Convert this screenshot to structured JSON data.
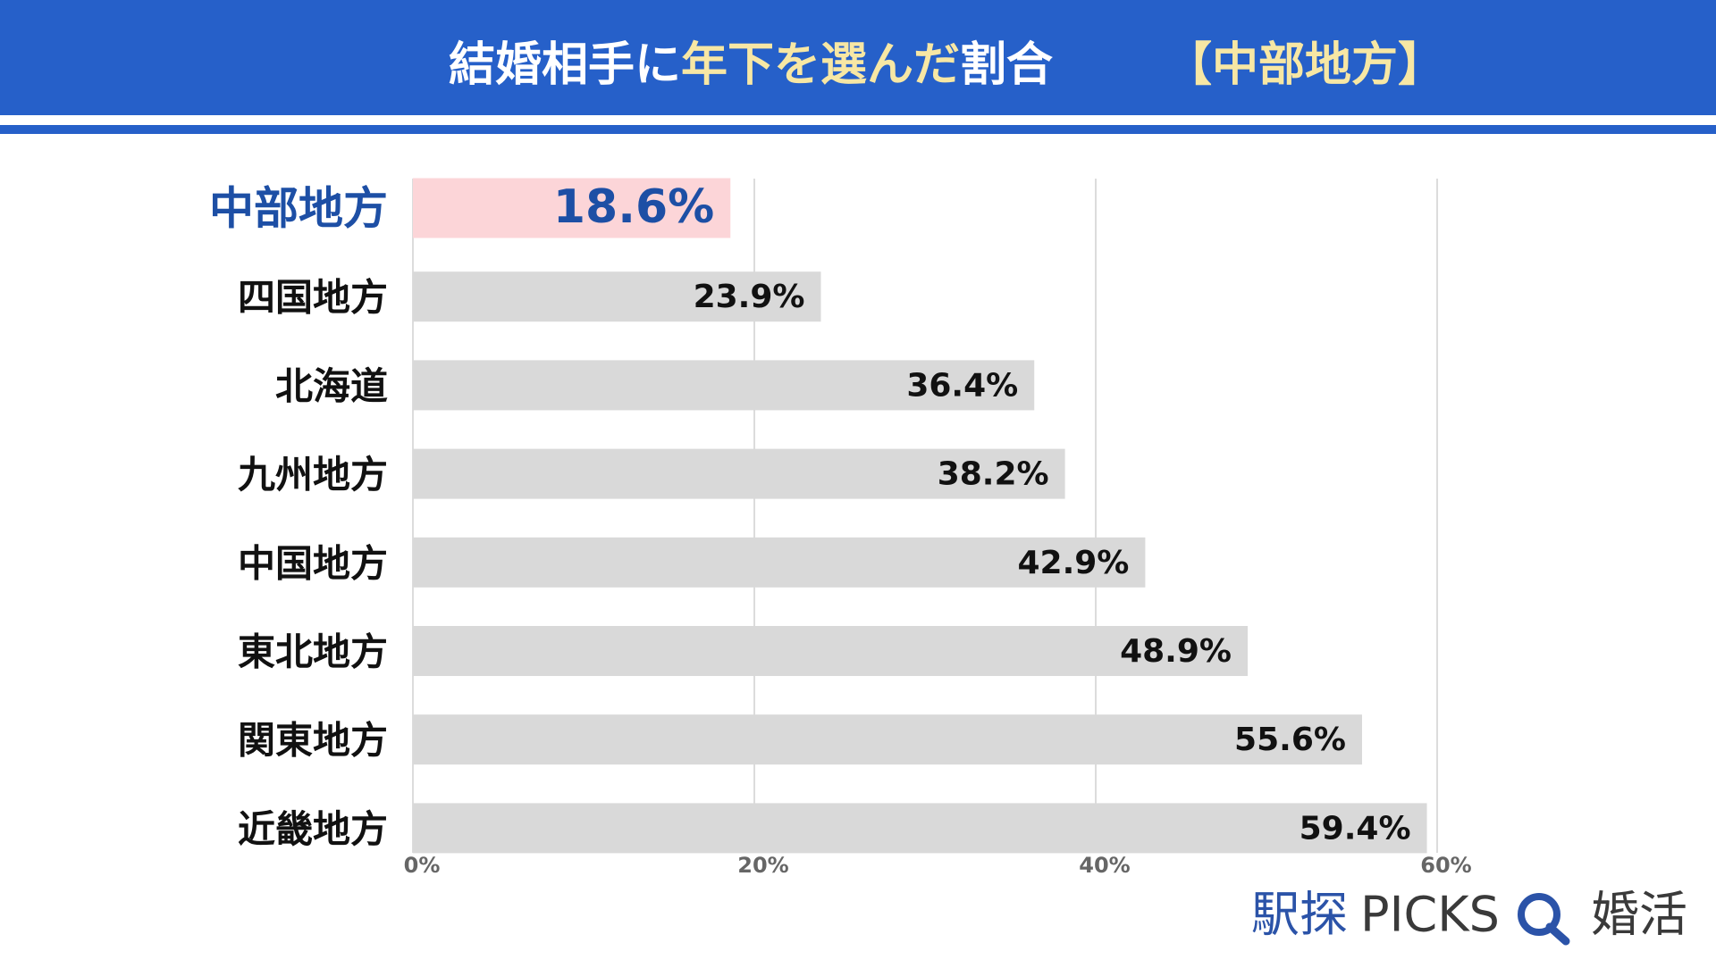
{
  "chart_data": {
    "type": "bar",
    "orientation": "horizontal",
    "title_segments": [
      {
        "text": "結婚相手に",
        "color": "#ffffff"
      },
      {
        "text": "年下を選んだ",
        "color": "#f7e7a4"
      },
      {
        "text": "割合",
        "color": "#ffffff"
      }
    ],
    "subtitle": "【中部地方】",
    "subtitle_color": "#f7e7a4",
    "categories": [
      "中部地方",
      "四国地方",
      "北海道",
      "九州地方",
      "中国地方",
      "東北地方",
      "関東地方",
      "近畿地方"
    ],
    "values": [
      18.6,
      23.9,
      36.4,
      38.2,
      42.9,
      48.9,
      55.6,
      59.4
    ],
    "value_labels": [
      "18.6%",
      "23.9%",
      "36.4%",
      "38.2%",
      "42.9%",
      "48.9%",
      "55.6%",
      "59.4%"
    ],
    "colors": [
      "#fcd5d8",
      "#d9d9d9",
      "#d9d9d9",
      "#d9d9d9",
      "#d9d9d9",
      "#d9d9d9",
      "#d9d9d9",
      "#d9d9d9"
    ],
    "label_colors": [
      "#1d4fa5",
      "#111111",
      "#111111",
      "#111111",
      "#111111",
      "#111111",
      "#111111",
      "#111111"
    ],
    "xlim": [
      0,
      60
    ],
    "xticks": [
      {
        "value": 0,
        "label": "0%"
      },
      {
        "value": 20,
        "label": "20%"
      },
      {
        "value": 40,
        "label": "40%"
      },
      {
        "value": 60,
        "label": "60%"
      }
    ],
    "grid": true
  },
  "logo": {
    "brand": "駅探",
    "name": "PICKS",
    "service": "婚活"
  }
}
